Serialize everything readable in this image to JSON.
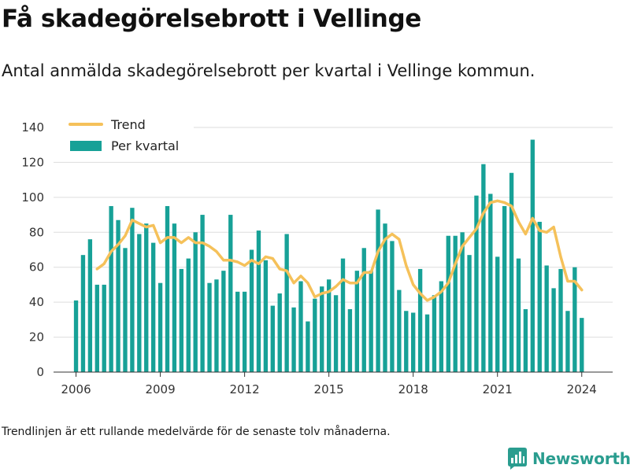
{
  "title": "Få skadegörelsebrott i Vellinge",
  "subtitle": "Antal anmälda skadegörelsebrott per kvartal i Vellinge kommun.",
  "footnote": "Trendlinjen är ett rullande medelvärde för de senaste tolv månaderna.",
  "brand": {
    "name": "Newsworthy",
    "icon": "newsworthy-logo-icon"
  },
  "colors": {
    "bars": "#17a197",
    "trend": "#f5c15a",
    "grid": "#dddddd",
    "axis": "#333333"
  },
  "chart_data": {
    "type": "bar",
    "x_start": 2006.0,
    "x_step": 0.25,
    "xlim": [
      2005.2,
      2025.1
    ],
    "ylim": [
      0,
      140
    ],
    "xticks": [
      2006,
      2009,
      2012,
      2015,
      2018,
      2021,
      2024
    ],
    "yticks": [
      0,
      20,
      40,
      60,
      80,
      100,
      120,
      140
    ],
    "legend": {
      "position": "top-left",
      "entries": [
        "Trend",
        "Per kvartal"
      ]
    },
    "grid": true,
    "series": [
      {
        "name": "Per kvartal",
        "type": "bar",
        "values": [
          41,
          67,
          76,
          50,
          50,
          95,
          87,
          71,
          94,
          79,
          85,
          74,
          51,
          95,
          85,
          59,
          65,
          80,
          90,
          51,
          53,
          58,
          90,
          46,
          46,
          70,
          81,
          64,
          38,
          45,
          79,
          37,
          52,
          29,
          42,
          49,
          53,
          44,
          65,
          36,
          58,
          71,
          58,
          93,
          85,
          75,
          47,
          35,
          34,
          59,
          33,
          44,
          52,
          78,
          78,
          80,
          67,
          101,
          119,
          102,
          66,
          95,
          114,
          65,
          36,
          133,
          86,
          61,
          48,
          59,
          35,
          60,
          31
        ]
      },
      {
        "name": "Trend",
        "type": "line",
        "x": [
          2006.75,
          2007.0,
          2007.25,
          2007.5,
          2007.75,
          2008.0,
          2008.25,
          2008.5,
          2008.75,
          2009.0,
          2009.25,
          2009.5,
          2009.75,
          2010.0,
          2010.25,
          2010.5,
          2010.75,
          2011.0,
          2011.25,
          2011.5,
          2011.75,
          2012.0,
          2012.25,
          2012.5,
          2012.75,
          2013.0,
          2013.25,
          2013.5,
          2013.75,
          2014.0,
          2014.25,
          2014.5,
          2014.75,
          2015.0,
          2015.25,
          2015.5,
          2015.75,
          2016.0,
          2016.25,
          2016.5,
          2016.75,
          2017.0,
          2017.25,
          2017.5,
          2017.75,
          2018.0,
          2018.25,
          2018.5,
          2018.75,
          2019.0,
          2019.25,
          2019.5,
          2019.75,
          2020.0,
          2020.25,
          2020.5,
          2020.75,
          2021.0,
          2021.25,
          2021.5,
          2021.75,
          2022.0,
          2022.25,
          2022.5,
          2022.75,
          2023.0,
          2023.25,
          2023.5,
          2023.75,
          2024.0
        ],
        "values": [
          59,
          62,
          69,
          73,
          78,
          87,
          85,
          83,
          84,
          74,
          77,
          77,
          74,
          77,
          74,
          74,
          72,
          69,
          64,
          64,
          63,
          61,
          64,
          62,
          66,
          65,
          59,
          58,
          51,
          55,
          51,
          43,
          45,
          46,
          49,
          53,
          51,
          51,
          57,
          57,
          69,
          76,
          79,
          76,
          61,
          50,
          45,
          41,
          43,
          46,
          51,
          62,
          72,
          77,
          82,
          91,
          97,
          98,
          97,
          95,
          86,
          79,
          88,
          81,
          80,
          83,
          66,
          52,
          52,
          47
        ]
      }
    ]
  }
}
